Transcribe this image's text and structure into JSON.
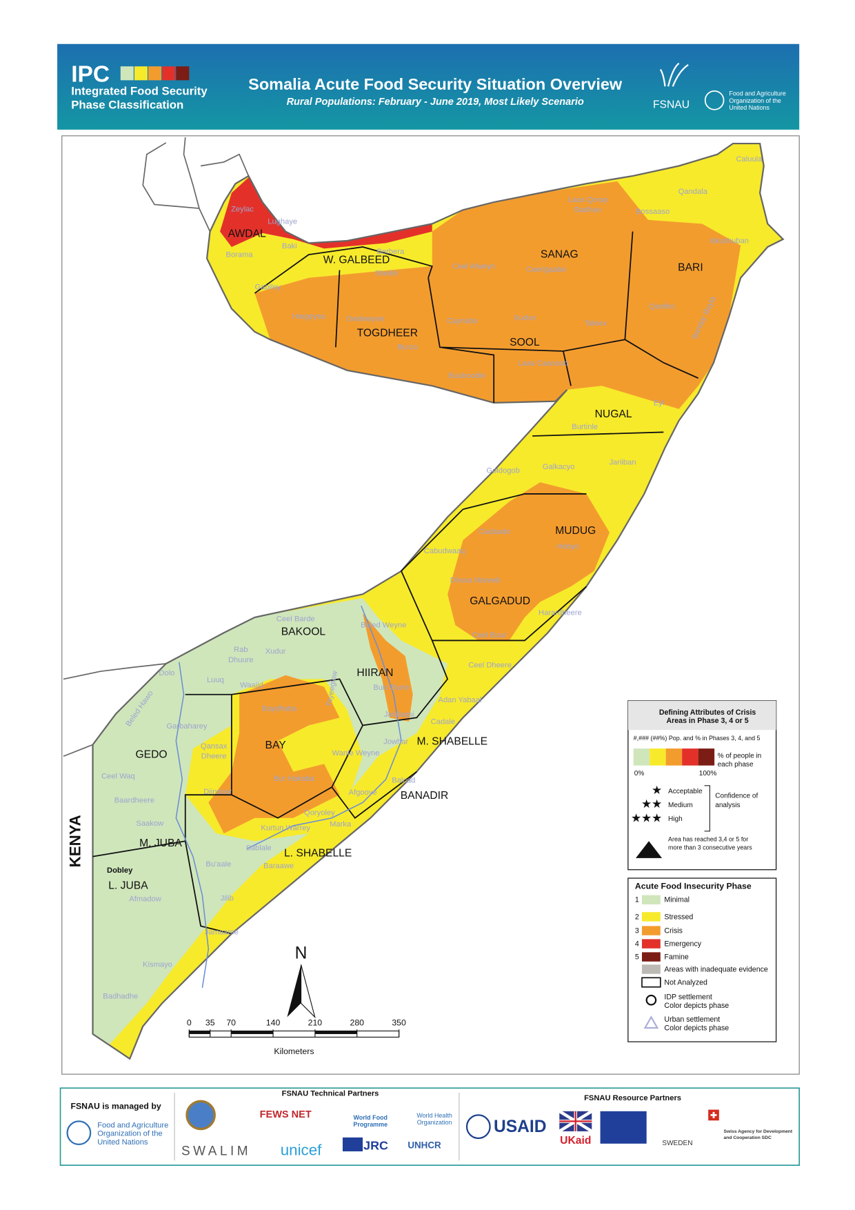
{
  "header": {
    "logo_text": "IPC",
    "logo_subtitle": [
      "Integrated Food Security",
      "Phase Classification"
    ],
    "title": "Somalia Acute Food Security Situation Overview",
    "subtitle": "Rural Populations: February - June 2019, Most Likely Scenario",
    "fsnau": "FSNAU",
    "fao": [
      "Food and Agriculture",
      "Organization of the",
      "United Nations"
    ]
  },
  "map": {
    "regions": [
      "AWDAL",
      "W. GALBEED",
      "TOGDHEER",
      "SANAG",
      "SOOL",
      "BARI",
      "NUGAL",
      "MUDUG",
      "GALGADUD",
      "BAKOOL",
      "HIIRAN",
      "M. SHABELLE",
      "BANADIR",
      "BAY",
      "GEDO",
      "M. JUBA",
      "L. SHABELLE",
      "L. JUBA"
    ],
    "districts": [
      "Zeylac",
      "Lughaye",
      "Baki",
      "Borama",
      "Gabiley",
      "Berbera",
      "Sheikh",
      "Hargeysa",
      "Owdweyne",
      "Burco",
      "Buuhoodle",
      "Laas Caanood",
      "Caynabo",
      "Xudun",
      "Taleex",
      "Ceel Afweyn",
      "Ceerigaabo",
      "Laas Qoray",
      "Badhan",
      "Bossaaso",
      "Qandala",
      "Caluula",
      "Iskushuban",
      "Qardho",
      "Bandar Beyla",
      "Eyl",
      "Burtinle",
      "Jariiban",
      "Galkacyo",
      "Goldogob",
      "Hobyo",
      "Cadaado",
      "Cabudwaaq",
      "Dhusa Mareeb",
      "Ceel Buur",
      "Harardheere",
      "Ceel Dheere",
      "Beled Weyne",
      "Bulo Burte",
      "Jalalaqsi",
      "Adan Yabaal",
      "Cadale",
      "Jowhar",
      "Balcad",
      "Afgooye",
      "Wanle Weyne",
      "Qoryoley",
      "Marka",
      "Kurtun Warrey",
      "Sablale",
      "Baraawe",
      "Ceel Barde",
      "Rab",
      "Dhuure",
      "Xudur",
      "Waajid",
      "Tayeeglow",
      "Baydhaba",
      "Qansax",
      "Dheere",
      "Bur Hakaba",
      "Diinsoor",
      "Dolo",
      "Luuq",
      "Beled Hawo",
      "Garbaharey",
      "Ceel Waq",
      "Baardheere",
      "Saakow",
      "Bu'aale",
      "Jilib",
      "Afmadow",
      "Jamaame",
      "Kismayo",
      "Badhadhe"
    ],
    "urban_label": "Dobley",
    "country_label": "KENYA",
    "north": "N",
    "scale": {
      "ticks": [
        0,
        35,
        70,
        140,
        210,
        280,
        350
      ],
      "max": 350,
      "unit": "Kilometers"
    }
  },
  "legend_attributes": {
    "title": [
      "Defining Attributes of Crisis",
      "Areas in Phase 3, 4 or 5"
    ],
    "pop_note": "#,### (##%) Pop. and % in Phases 3, 4, and 5",
    "bar_label": [
      "% of people in",
      "each phase"
    ],
    "bar_min": "0%",
    "bar_max": "100%",
    "confidence": [
      "Acceptable",
      "Medium",
      "High"
    ],
    "confidence_label": [
      "Confidence of",
      "analysis"
    ],
    "triangle_note": [
      "Area has reached 3,4 or 5 for",
      "more than 3 consecutive years"
    ]
  },
  "legend_phases": {
    "title": "Acute Food Insecurity Phase",
    "phases": [
      {
        "number": 1,
        "label": "Minimal",
        "color": "#cfe6bb"
      },
      {
        "number": 2,
        "label": "Stressed",
        "color": "#f7ea2b"
      },
      {
        "number": 3,
        "label": "Crisis",
        "color": "#f39c2e"
      },
      {
        "number": 4,
        "label": "Emergency",
        "color": "#e3312a"
      },
      {
        "number": 5,
        "label": "Famine",
        "color": "#7b1d15"
      }
    ],
    "inadequate": "Areas with inadequate evidence",
    "not_analyzed": "Not Analyzed",
    "idp": [
      "IDP settlement",
      "Color depicts phase"
    ],
    "urban": [
      "Urban settlement",
      "Color depicts phase"
    ]
  },
  "footer": {
    "managed_by": "FSNAU is managed by",
    "fao": [
      "Food and Agriculture",
      "Organization of the",
      "United Nations"
    ],
    "technical_title": "FSNAU Technical Partners",
    "technical": [
      "FEWS NET",
      "World Food",
      "Programme",
      "World Health",
      "Organization",
      "SWALIM",
      "unicef",
      "JRC",
      "UNHCR"
    ],
    "resource_title": "FSNAU Resource Partners",
    "resource": [
      "USAID",
      "UKaid",
      "SWEDEN",
      "Swiss Agency for Development",
      "and Cooperation SDC"
    ]
  }
}
